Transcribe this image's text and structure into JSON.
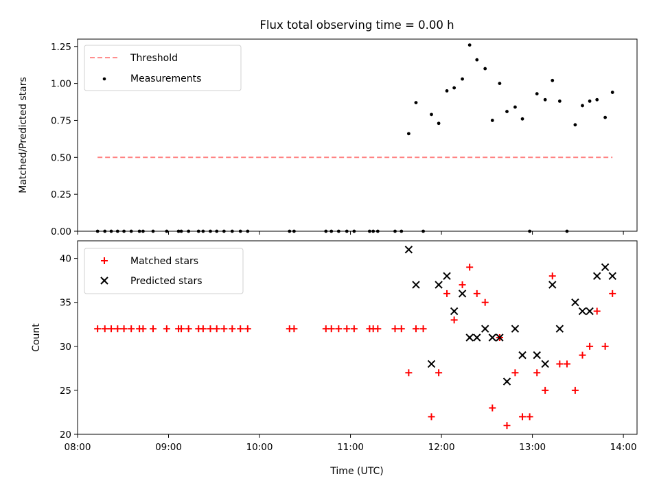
{
  "figure": {
    "title": "Flux total observing time = 0.00 h"
  },
  "chart_data": [
    {
      "type": "scatter",
      "ylabel": "Matched/Predicted stars",
      "ylim": [
        0,
        1.3
      ],
      "xlim": [
        8.0,
        14.15
      ],
      "y_ticks": [
        {
          "v": 0.0,
          "label": "0.00"
        },
        {
          "v": 0.25,
          "label": "0.25"
        },
        {
          "v": 0.5,
          "label": "0.50"
        },
        {
          "v": 0.75,
          "label": "0.75"
        },
        {
          "v": 1.0,
          "label": "1.00"
        },
        {
          "v": 1.25,
          "label": "1.25"
        }
      ],
      "legend_position": "top-left",
      "legend": {
        "threshold": "Threshold",
        "measurements": "Measurements"
      },
      "threshold": {
        "value": 0.5,
        "x_start": 8.22,
        "x_end": 13.88,
        "color": "#ff7f7f"
      },
      "measurements": {
        "color": "#000000",
        "points": [
          [
            8.22,
            0
          ],
          [
            8.3,
            0
          ],
          [
            8.37,
            0
          ],
          [
            8.44,
            0
          ],
          [
            8.51,
            0
          ],
          [
            8.59,
            0
          ],
          [
            8.68,
            0
          ],
          [
            8.72,
            0
          ],
          [
            8.83,
            0
          ],
          [
            8.98,
            0
          ],
          [
            9.11,
            0
          ],
          [
            9.14,
            0
          ],
          [
            9.22,
            0
          ],
          [
            9.33,
            0
          ],
          [
            9.38,
            0
          ],
          [
            9.46,
            0
          ],
          [
            9.53,
            0
          ],
          [
            9.61,
            0
          ],
          [
            9.7,
            0
          ],
          [
            9.79,
            0
          ],
          [
            9.87,
            0
          ],
          [
            10.33,
            0
          ],
          [
            10.38,
            0
          ],
          [
            10.73,
            0
          ],
          [
            10.79,
            0
          ],
          [
            10.87,
            0
          ],
          [
            10.96,
            0
          ],
          [
            11.04,
            0
          ],
          [
            11.21,
            0
          ],
          [
            11.25,
            0
          ],
          [
            11.3,
            0
          ],
          [
            11.49,
            0
          ],
          [
            11.56,
            0
          ],
          [
            11.8,
            0
          ],
          [
            11.64,
            0.66
          ],
          [
            11.72,
            0.87
          ],
          [
            11.89,
            0.79
          ],
          [
            11.97,
            0.73
          ],
          [
            12.06,
            0.95
          ],
          [
            12.14,
            0.97
          ],
          [
            12.23,
            1.03
          ],
          [
            12.31,
            1.26
          ],
          [
            12.39,
            1.16
          ],
          [
            12.48,
            1.1
          ],
          [
            12.56,
            0.75
          ],
          [
            12.64,
            1.0
          ],
          [
            12.72,
            0.81
          ],
          [
            12.81,
            0.84
          ],
          [
            12.89,
            0.76
          ],
          [
            12.97,
            0
          ],
          [
            13.05,
            0.93
          ],
          [
            13.14,
            0.89
          ],
          [
            13.22,
            1.02
          ],
          [
            13.3,
            0.88
          ],
          [
            13.38,
            0
          ],
          [
            13.47,
            0.72
          ],
          [
            13.55,
            0.85
          ],
          [
            13.63,
            0.88
          ],
          [
            13.71,
            0.89
          ],
          [
            13.8,
            0.77
          ],
          [
            13.88,
            0.94
          ]
        ]
      }
    },
    {
      "type": "scatter",
      "xlabel": "Time (UTC)",
      "ylabel": "Count",
      "ylim": [
        20,
        42
      ],
      "xlim": [
        8.0,
        14.15
      ],
      "y_ticks": [
        {
          "v": 20,
          "label": "20"
        },
        {
          "v": 25,
          "label": "25"
        },
        {
          "v": 30,
          "label": "30"
        },
        {
          "v": 35,
          "label": "35"
        },
        {
          "v": 40,
          "label": "40"
        }
      ],
      "x_ticks": [
        {
          "v": 8,
          "label": "08:00"
        },
        {
          "v": 9,
          "label": "09:00"
        },
        {
          "v": 10,
          "label": "10:00"
        },
        {
          "v": 11,
          "label": "11:00"
        },
        {
          "v": 12,
          "label": "12:00"
        },
        {
          "v": 13,
          "label": "13:00"
        },
        {
          "v": 14,
          "label": "14:00"
        }
      ],
      "legend_position": "top-left",
      "series": [
        {
          "name": "Matched stars",
          "marker": "plus",
          "color": "#ff0000",
          "points": [
            [
              8.22,
              32
            ],
            [
              8.3,
              32
            ],
            [
              8.37,
              32
            ],
            [
              8.44,
              32
            ],
            [
              8.51,
              32
            ],
            [
              8.59,
              32
            ],
            [
              8.68,
              32
            ],
            [
              8.72,
              32
            ],
            [
              8.83,
              32
            ],
            [
              8.98,
              32
            ],
            [
              9.11,
              32
            ],
            [
              9.14,
              32
            ],
            [
              9.22,
              32
            ],
            [
              9.33,
              32
            ],
            [
              9.38,
              32
            ],
            [
              9.46,
              32
            ],
            [
              9.53,
              32
            ],
            [
              9.61,
              32
            ],
            [
              9.7,
              32
            ],
            [
              9.79,
              32
            ],
            [
              9.87,
              32
            ],
            [
              10.33,
              32
            ],
            [
              10.38,
              32
            ],
            [
              10.73,
              32
            ],
            [
              10.79,
              32
            ],
            [
              10.87,
              32
            ],
            [
              10.96,
              32
            ],
            [
              11.04,
              32
            ],
            [
              11.21,
              32
            ],
            [
              11.25,
              32
            ],
            [
              11.3,
              32
            ],
            [
              11.49,
              32
            ],
            [
              11.56,
              32
            ],
            [
              11.72,
              32
            ],
            [
              11.8,
              32
            ],
            [
              11.64,
              27
            ],
            [
              11.89,
              22
            ],
            [
              11.97,
              27
            ],
            [
              12.06,
              36
            ],
            [
              12.14,
              33
            ],
            [
              12.23,
              37
            ],
            [
              12.31,
              39
            ],
            [
              12.39,
              36
            ],
            [
              12.48,
              35
            ],
            [
              12.56,
              23
            ],
            [
              12.64,
              31
            ],
            [
              12.72,
              21
            ],
            [
              12.81,
              27
            ],
            [
              12.89,
              22
            ],
            [
              12.97,
              22
            ],
            [
              13.05,
              27
            ],
            [
              13.14,
              25
            ],
            [
              13.22,
              38
            ],
            [
              13.3,
              28
            ],
            [
              13.38,
              28
            ],
            [
              13.47,
              25
            ],
            [
              13.55,
              29
            ],
            [
              13.63,
              30
            ],
            [
              13.71,
              34
            ],
            [
              13.8,
              30
            ],
            [
              13.88,
              36
            ]
          ]
        },
        {
          "name": "Predicted stars",
          "marker": "x",
          "color": "#000000",
          "points": [
            [
              11.64,
              41
            ],
            [
              11.72,
              37
            ],
            [
              11.89,
              28
            ],
            [
              11.97,
              37
            ],
            [
              12.06,
              38
            ],
            [
              12.14,
              34
            ],
            [
              12.23,
              36
            ],
            [
              12.31,
              31
            ],
            [
              12.39,
              31
            ],
            [
              12.48,
              32
            ],
            [
              12.56,
              31
            ],
            [
              12.64,
              31
            ],
            [
              12.72,
              26
            ],
            [
              12.81,
              32
            ],
            [
              12.89,
              29
            ],
            [
              13.05,
              29
            ],
            [
              13.14,
              28
            ],
            [
              13.22,
              37
            ],
            [
              13.3,
              32
            ],
            [
              13.47,
              35
            ],
            [
              13.55,
              34
            ],
            [
              13.63,
              34
            ],
            [
              13.71,
              38
            ],
            [
              13.8,
              39
            ],
            [
              13.88,
              38
            ]
          ]
        }
      ]
    }
  ]
}
